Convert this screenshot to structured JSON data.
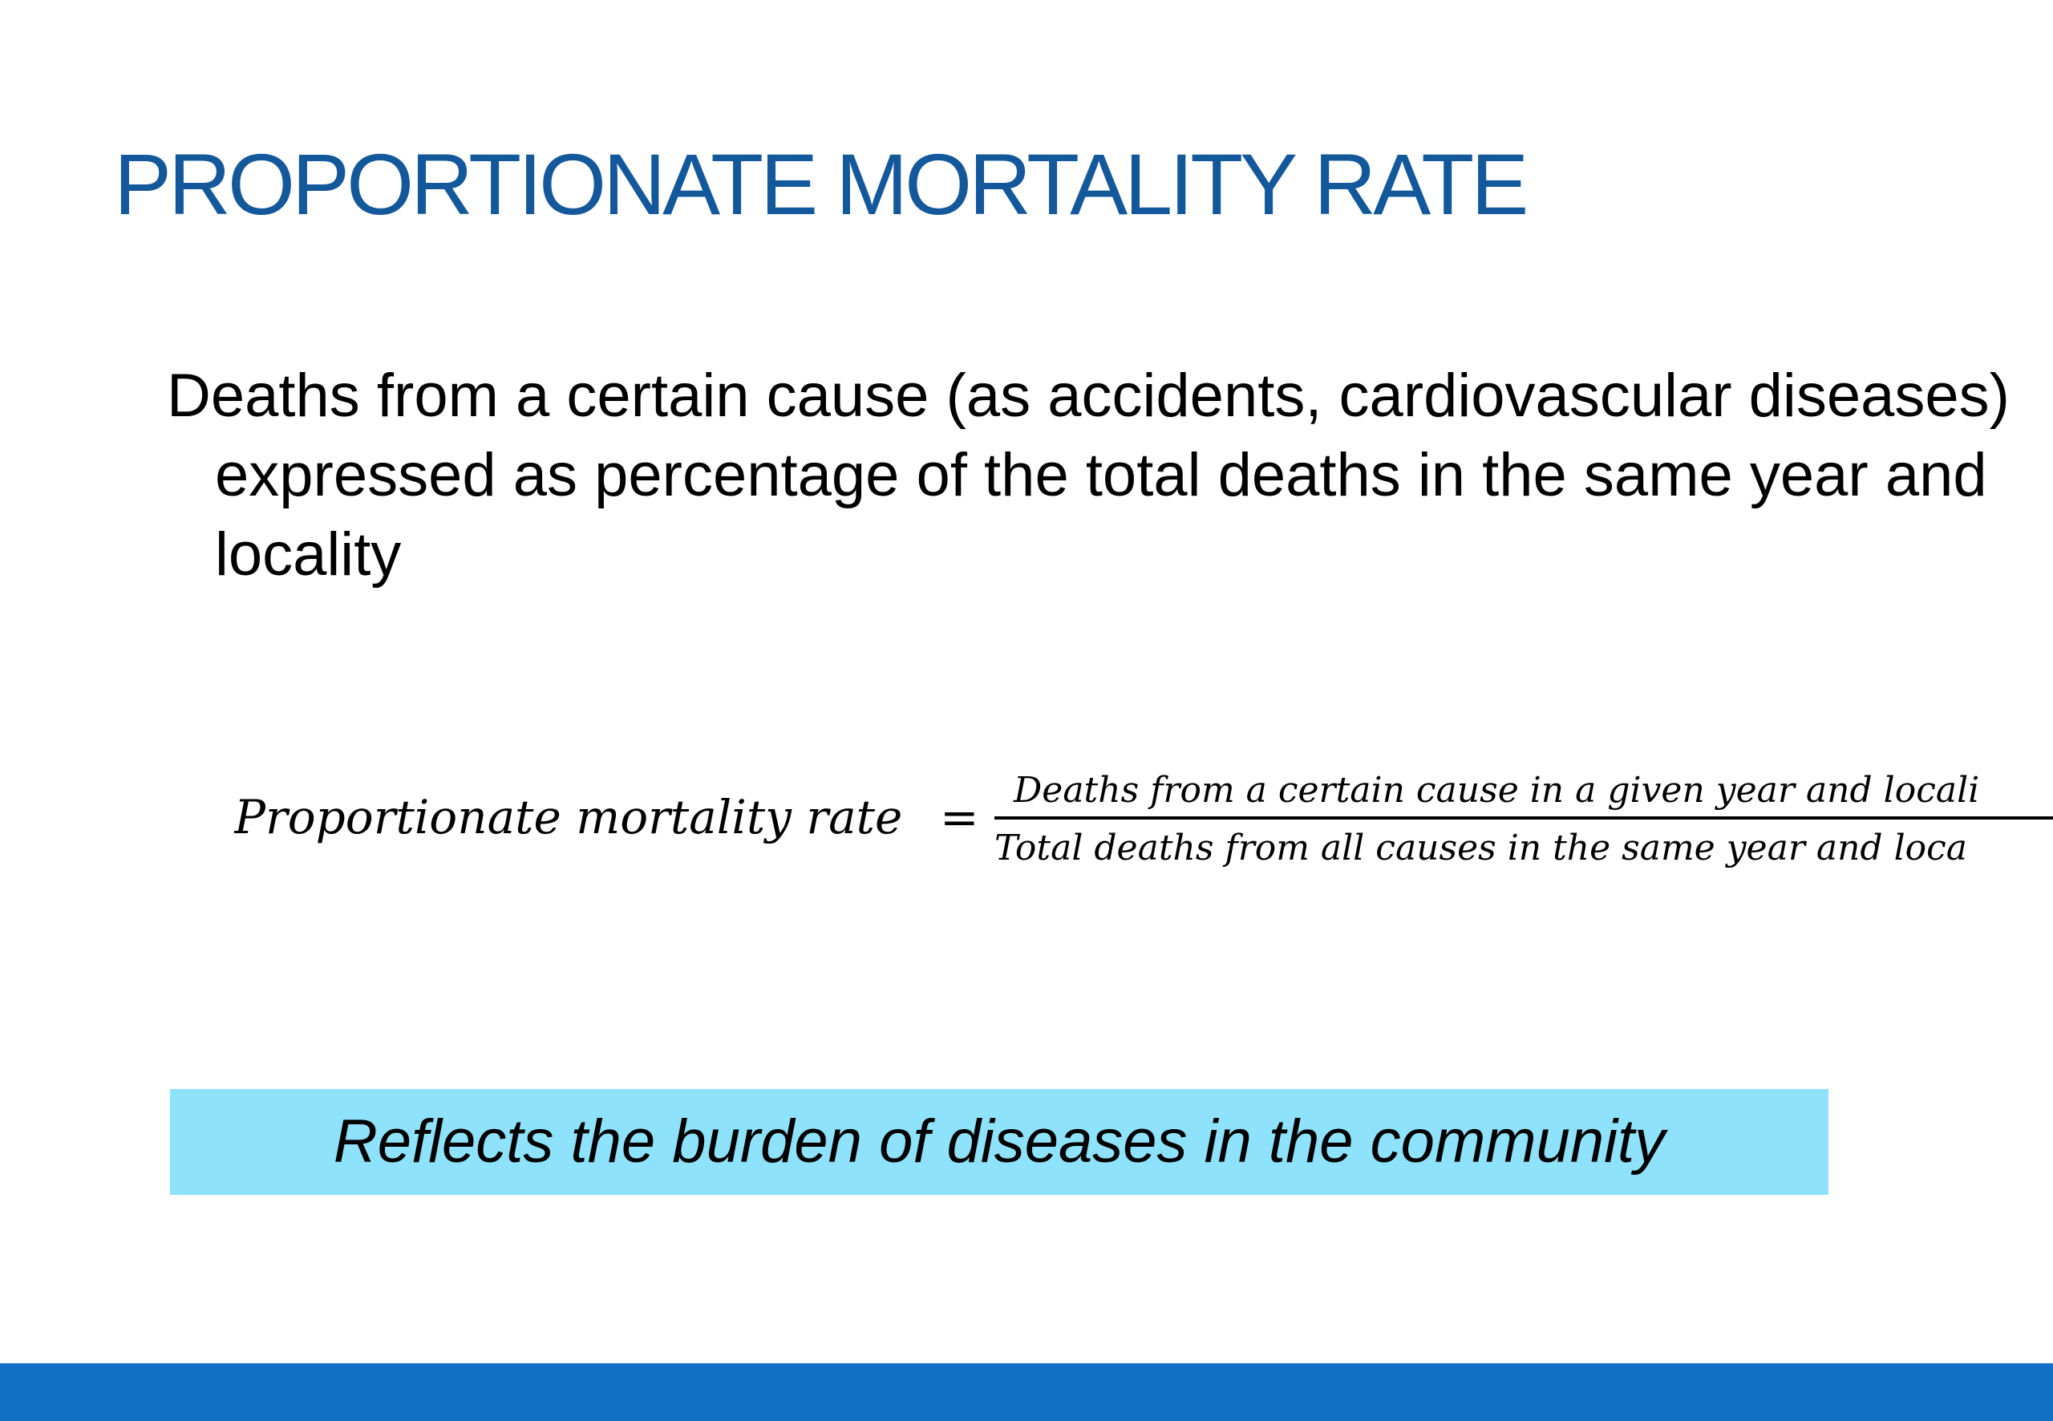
{
  "slide": {
    "title": "PROPORTIONATE MORTALITY RATE",
    "definition": "Deaths from a certain cause (as accidents, cardiovascular diseases) expressed as percentage of the total deaths in the same year and locality",
    "formula": {
      "lhs": "Proportionate mortality rate",
      "equals": "=",
      "numerator": "Deaths from a certain cause in a given year and locali",
      "denominator": "Total deaths from all causes in the same year and loca"
    },
    "highlight": "Reflects the burden of diseases in the community"
  },
  "colors": {
    "title": "#14589c",
    "highlight_background": "#8ee2fb",
    "footer_bar": "#116fc6"
  }
}
